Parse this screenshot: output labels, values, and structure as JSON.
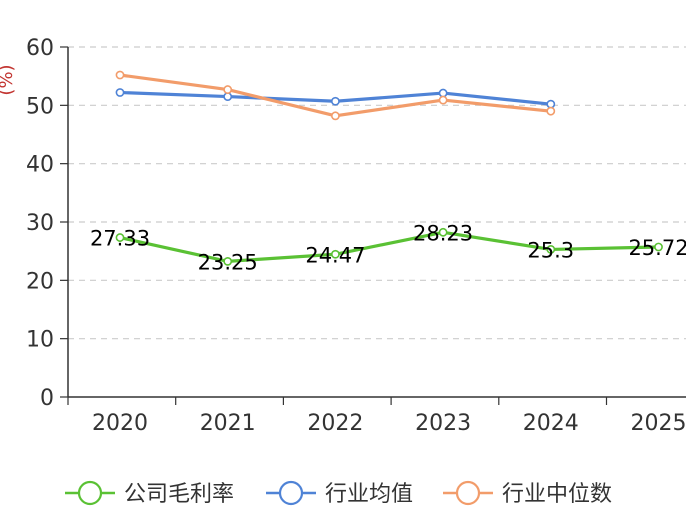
{
  "chart_data": {
    "type": "line",
    "title": "",
    "xlabel": "",
    "ylabel": "(%)",
    "ylim": [
      0,
      60
    ],
    "yticks": [
      0,
      10,
      20,
      30,
      40,
      50,
      60
    ],
    "grid": true,
    "legend_position": "bottom",
    "categories": [
      "2020",
      "2021",
      "2022",
      "2023",
      "2024",
      "2025"
    ],
    "series": [
      {
        "name": "公司毛利率",
        "color": "#5ac134",
        "values": [
          27.33,
          23.25,
          24.47,
          28.23,
          25.3,
          25.72
        ],
        "labels": [
          "27.33",
          "23.25",
          "24.47",
          "28.23",
          "25.3",
          "25.72"
        ]
      },
      {
        "name": "行业均值",
        "color": "#4f83d6",
        "values": [
          52.2,
          51.5,
          50.7,
          52.1,
          50.2,
          null
        ],
        "labels": []
      },
      {
        "name": "行业中位数",
        "color": "#f29c6a",
        "values": [
          55.2,
          52.7,
          48.2,
          50.9,
          49.0,
          null
        ],
        "labels": []
      }
    ]
  }
}
